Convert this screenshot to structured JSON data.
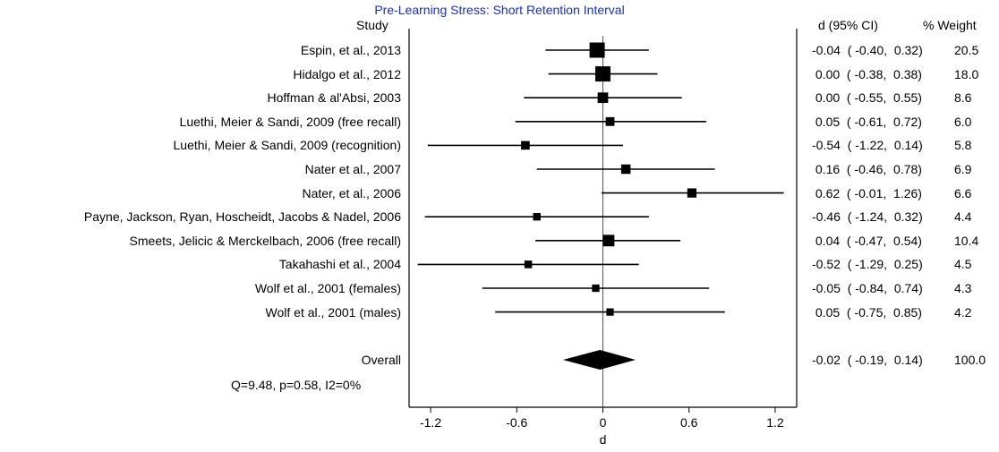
{
  "chart_data": {
    "type": "forest",
    "title": "Pre-Learning Stress: Short Retention Interval",
    "xlabel": "d",
    "xticks": [
      "-1.2",
      "-0.6",
      "0",
      "0.6",
      "1.2"
    ],
    "xlim": [
      -1.35,
      1.35
    ],
    "columns": {
      "study": "Study",
      "ci": "d (95% CI)",
      "weight": "% Weight"
    },
    "studies": [
      {
        "name": "Espin, et al., 2013",
        "d": -0.04,
        "lo": -0.4,
        "hi": 0.32,
        "ci_text": "-0.04  ( -0.40,  0.32)",
        "weight": "20.5",
        "w": 20.5
      },
      {
        "name": "Hidalgo et al., 2012",
        "d": 0.0,
        "lo": -0.38,
        "hi": 0.38,
        "ci_text": " 0.00  ( -0.38,  0.38)",
        "weight": "18.0",
        "w": 18.0
      },
      {
        "name": "Hoffman & al'Absi, 2003",
        "d": 0.0,
        "lo": -0.55,
        "hi": 0.55,
        "ci_text": " 0.00  ( -0.55,  0.55)",
        "weight": "8.6",
        "w": 8.6
      },
      {
        "name": "Luethi, Meier & Sandi, 2009 (free recall)",
        "d": 0.05,
        "lo": -0.61,
        "hi": 0.72,
        "ci_text": " 0.05  ( -0.61,  0.72)",
        "weight": "6.0",
        "w": 6.0
      },
      {
        "name": "Luethi, Meier & Sandi, 2009 (recognition)",
        "d": -0.54,
        "lo": -1.22,
        "hi": 0.14,
        "ci_text": "-0.54  ( -1.22,  0.14)",
        "weight": "5.8",
        "w": 5.8
      },
      {
        "name": "Nater et al., 2007",
        "d": 0.16,
        "lo": -0.46,
        "hi": 0.78,
        "ci_text": " 0.16  ( -0.46,  0.78)",
        "weight": "6.9",
        "w": 6.9
      },
      {
        "name": "Nater, et al., 2006",
        "d": 0.62,
        "lo": -0.01,
        "hi": 1.26,
        "ci_text": " 0.62  ( -0.01,  1.26)",
        "weight": "6.6",
        "w": 6.6
      },
      {
        "name": "Payne, Jackson, Ryan, Hoscheidt, Jacobs & Nadel, 2006",
        "d": -0.46,
        "lo": -1.24,
        "hi": 0.32,
        "ci_text": "-0.46  ( -1.24,  0.32)",
        "weight": "4.4",
        "w": 4.4
      },
      {
        "name": "Smeets, Jelicic & Merckelbach, 2006 (free recall)",
        "d": 0.04,
        "lo": -0.47,
        "hi": 0.54,
        "ci_text": " 0.04  ( -0.47,  0.54)",
        "weight": "10.4",
        "w": 10.4
      },
      {
        "name": "Takahashi et al., 2004",
        "d": -0.52,
        "lo": -1.29,
        "hi": 0.25,
        "ci_text": "-0.52  ( -1.29,  0.25)",
        "weight": "4.5",
        "w": 4.5
      },
      {
        "name": "Wolf et al., 2001 (females)",
        "d": -0.05,
        "lo": -0.84,
        "hi": 0.74,
        "ci_text": "-0.05  ( -0.84,  0.74)",
        "weight": "4.3",
        "w": 4.3
      },
      {
        "name": "Wolf et al., 2001 (males)",
        "d": 0.05,
        "lo": -0.75,
        "hi": 0.85,
        "ci_text": " 0.05  ( -0.75,  0.85)",
        "weight": "4.2",
        "w": 4.2
      }
    ],
    "overall": {
      "name": "Overall",
      "d": -0.02,
      "lo": -0.19,
      "hi": 0.14,
      "ci_text": "-0.02  ( -0.19,  0.14)",
      "weight": "100.0"
    },
    "heterogeneity": "Q=9.48, p=0.58, I2=0%",
    "colors": {
      "title": "#1a2fc4",
      "marks": "#000000"
    }
  }
}
